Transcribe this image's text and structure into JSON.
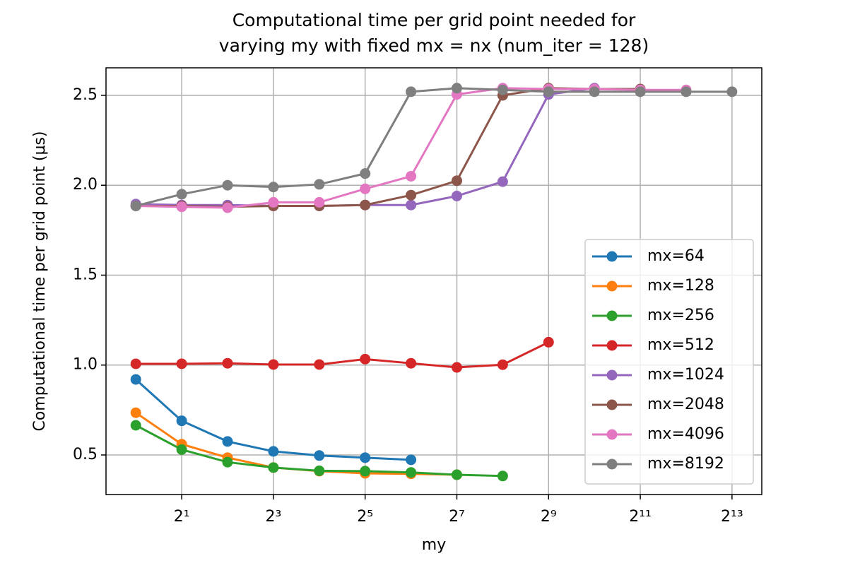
{
  "chart_data": {
    "type": "line",
    "title": [
      "Computational time per grid point needed for",
      "varying my with fixed mx = nx (num_iter = 128)"
    ],
    "x_label": "my",
    "y_label": "Computational time per grid point (μs)",
    "x_scale": "log2",
    "grid": true,
    "legend_position": "lower right",
    "x": [
      1,
      2,
      4,
      8,
      16,
      32,
      64,
      128,
      256,
      512,
      1024,
      2048,
      4096,
      8192
    ],
    "xlim": [
      0.637,
      12850
    ],
    "xticks": [
      {
        "value": 2,
        "label": "2¹"
      },
      {
        "value": 8,
        "label": "2³"
      },
      {
        "value": 32,
        "label": "2⁵"
      },
      {
        "value": 128,
        "label": "2⁷"
      },
      {
        "value": 512,
        "label": "2⁹"
      },
      {
        "value": 2048,
        "label": "2¹¹"
      },
      {
        "value": 8192,
        "label": "2¹³"
      }
    ],
    "ylim": [
      0.28,
      2.653
    ],
    "yticks": [
      0.5,
      1.0,
      1.5,
      2.0,
      2.5
    ],
    "series": [
      {
        "name": "mx=64",
        "color": "#1f77b4",
        "values": [
          0.92,
          0.69,
          0.575,
          0.52,
          0.497,
          0.485,
          0.473,
          null,
          null,
          null,
          null,
          null,
          null,
          null
        ]
      },
      {
        "name": "mx=128",
        "color": "#ff7f0e",
        "values": [
          0.735,
          0.56,
          0.485,
          0.43,
          0.41,
          0.398,
          0.395,
          0.39,
          null,
          null,
          null,
          null,
          null,
          null
        ]
      },
      {
        "name": "mx=256",
        "color": "#2ca02c",
        "values": [
          0.665,
          0.53,
          0.46,
          0.43,
          0.412,
          0.41,
          0.403,
          0.39,
          0.383,
          null,
          null,
          null,
          null,
          null
        ]
      },
      {
        "name": "mx=512",
        "color": "#d62728",
        "values": [
          1.007,
          1.007,
          1.01,
          1.003,
          1.003,
          1.033,
          1.01,
          0.987,
          1.002,
          1.127,
          null,
          null,
          null,
          null
        ]
      },
      {
        "name": "mx=1024",
        "color": "#9467bd",
        "values": [
          1.895,
          1.89,
          1.89,
          1.885,
          1.885,
          1.89,
          1.89,
          1.94,
          2.02,
          2.505,
          2.54,
          null,
          null,
          null
        ]
      },
      {
        "name": "mx=2048",
        "color": "#8c564b",
        "values": [
          1.885,
          1.885,
          1.88,
          1.885,
          1.885,
          1.89,
          1.945,
          2.025,
          2.5,
          2.54,
          2.535,
          2.535,
          null,
          null
        ]
      },
      {
        "name": "mx=4096",
        "color": "#e377c2",
        "values": [
          1.885,
          1.88,
          1.875,
          1.905,
          1.905,
          1.98,
          2.05,
          2.505,
          2.54,
          2.535,
          2.535,
          2.53,
          2.53,
          null
        ]
      },
      {
        "name": "mx=8192",
        "color": "#7f7f7f",
        "values": [
          1.885,
          1.95,
          2.0,
          1.99,
          2.005,
          2.065,
          2.52,
          2.54,
          2.53,
          2.52,
          2.52,
          2.52,
          2.52,
          2.52
        ]
      }
    ]
  }
}
